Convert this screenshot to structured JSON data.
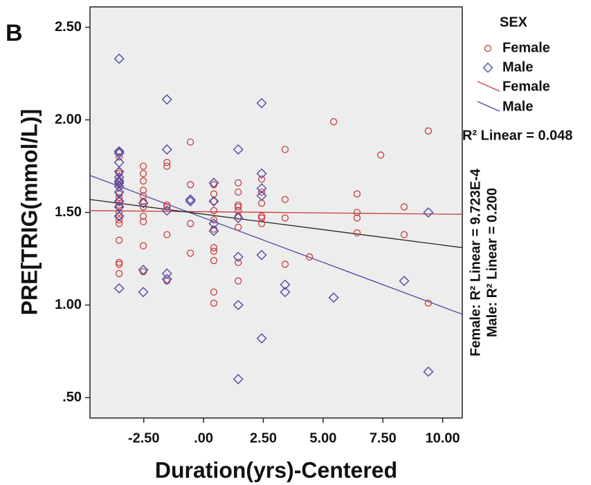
{
  "chart_data": {
    "type": "scatter",
    "panel_label": "B",
    "x_label": "Duration(yrs)-Centered",
    "y_label": "PRE[TRIG(mmol/L)]",
    "xlim": [
      -4.75,
      10.82
    ],
    "ylim": [
      0.39,
      2.61
    ],
    "xticks": [
      {
        "value": -2.5,
        "label": "-2.50"
      },
      {
        "value": 0,
        "label": ".00"
      },
      {
        "value": 2.5,
        "label": "2.50"
      },
      {
        "value": 5,
        "label": "5.00"
      },
      {
        "value": 7.5,
        "label": "7.50"
      },
      {
        "value": 10,
        "label": "10.00"
      }
    ],
    "yticks": [
      {
        "value": 0.5,
        "label": ".50"
      },
      {
        "value": 1,
        "label": "1.00"
      },
      {
        "value": 1.5,
        "label": "1.50"
      },
      {
        "value": 2,
        "label": "2.00"
      },
      {
        "value": 2.5,
        "label": "2.50"
      }
    ],
    "legend_title": "SEX",
    "series": [
      {
        "name": "Female",
        "color": "#c83c3c",
        "marker": "circle",
        "x": [
          -3.53,
          -3.53,
          -3.53,
          -3.53,
          -3.53,
          -3.53,
          -3.53,
          -3.53,
          -3.53,
          -3.53,
          -3.53,
          -3.53,
          -3.53,
          -3.53,
          -3.53,
          -3.53,
          -3.53,
          -3.53,
          -3.53,
          -2.52,
          -2.52,
          -2.52,
          -2.52,
          -2.52,
          -2.52,
          -2.52,
          -2.52,
          -2.52,
          -2.52,
          -2.52,
          -1.53,
          -1.53,
          -1.53,
          -1.53,
          -1.53,
          -1.53,
          -0.55,
          -0.55,
          -0.55,
          -0.55,
          0.43,
          0.43,
          0.43,
          0.43,
          0.43,
          0.43,
          0.43,
          0.43,
          0.43,
          0.43,
          0.43,
          1.45,
          1.45,
          1.45,
          1.45,
          1.45,
          1.45,
          1.45,
          1.45,
          1.45,
          2.43,
          2.43,
          2.43,
          2.43,
          2.43,
          2.43,
          3.41,
          3.41,
          3.41,
          3.41,
          4.43,
          5.44,
          6.42,
          6.42,
          6.42,
          6.42,
          7.41,
          8.39,
          8.39,
          9.4,
          9.4
        ],
        "values": [
          1.83,
          1.8,
          1.72,
          1.71,
          1.67,
          1.65,
          1.6,
          1.58,
          1.56,
          1.54,
          1.53,
          1.5,
          1.48,
          1.46,
          1.44,
          1.35,
          1.23,
          1.22,
          1.17,
          1.75,
          1.71,
          1.67,
          1.62,
          1.59,
          1.56,
          1.53,
          1.48,
          1.45,
          1.32,
          1.18,
          1.77,
          1.75,
          1.54,
          1.53,
          1.38,
          1.13,
          1.88,
          1.65,
          1.44,
          1.28,
          1.65,
          1.6,
          1.56,
          1.51,
          1.46,
          1.41,
          1.31,
          1.29,
          1.24,
          1.07,
          1.01,
          1.66,
          1.61,
          1.54,
          1.53,
          1.51,
          1.48,
          1.42,
          1.23,
          1.13,
          1.68,
          1.61,
          1.55,
          1.48,
          1.47,
          1.44,
          1.84,
          1.57,
          1.47,
          1.22,
          1.26,
          1.99,
          1.6,
          1.5,
          1.47,
          1.39,
          1.81,
          1.53,
          1.38,
          1.94,
          1.01
        ]
      },
      {
        "name": "Male",
        "color": "#4a4aa8",
        "marker": "diamond",
        "x": [
          -3.53,
          -3.53,
          -3.53,
          -3.53,
          -3.53,
          -3.53,
          -3.53,
          -3.53,
          -3.53,
          -3.53,
          -3.53,
          -3.53,
          -3.53,
          -3.53,
          -2.52,
          -2.52,
          -2.52,
          -1.53,
          -1.53,
          -1.53,
          -1.53,
          -1.53,
          -0.55,
          -0.55,
          0.43,
          0.43,
          0.43,
          0.43,
          1.45,
          1.45,
          1.45,
          1.45,
          1.45,
          2.43,
          2.43,
          2.43,
          2.43,
          2.43,
          2.43,
          3.41,
          3.41,
          5.44,
          8.39,
          9.4,
          9.4
        ],
        "values": [
          2.33,
          1.83,
          1.82,
          1.77,
          1.72,
          1.69,
          1.67,
          1.66,
          1.64,
          1.61,
          1.56,
          1.53,
          1.48,
          1.09,
          1.55,
          1.19,
          1.07,
          2.11,
          1.84,
          1.51,
          1.17,
          1.14,
          1.57,
          1.56,
          1.66,
          1.56,
          1.44,
          1.4,
          1.84,
          1.47,
          1.26,
          1.0,
          0.6,
          2.09,
          1.71,
          1.63,
          1.59,
          1.27,
          0.82,
          1.11,
          1.07,
          1.04,
          1.13,
          1.5,
          0.64
        ]
      }
    ],
    "fit_lines": [
      {
        "name": "Female",
        "color": "#c83c3c",
        "x": [
          -4.75,
          10.82
        ],
        "values": [
          1.51,
          1.49
        ]
      },
      {
        "name": "Male",
        "color": "#4a4aa8",
        "x": [
          -4.75,
          10.82
        ],
        "values": [
          1.7,
          0.95
        ]
      },
      {
        "color": "#222222",
        "x": [
          -4.75,
          10.82
        ],
        "values": [
          1.57,
          1.31
        ]
      }
    ],
    "annotations": [
      "R² Linear = 0.048",
      "Female: R² Linear = 9.723E-4",
      "Male: R² Linear = 0.200"
    ]
  }
}
